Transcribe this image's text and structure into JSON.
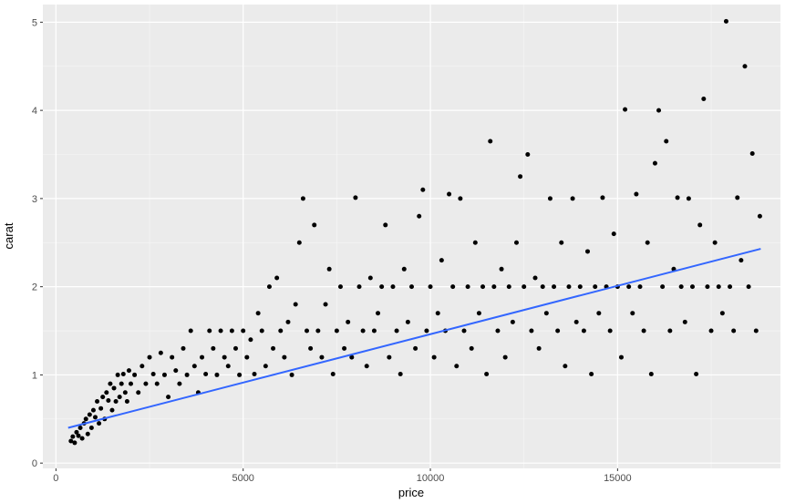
{
  "chart_data": {
    "type": "scatter",
    "xlabel": "price",
    "ylabel": "carat",
    "xlim": [
      -350,
      19350
    ],
    "ylim": [
      -0.06,
      5.2
    ],
    "x_ticks": [
      {
        "value": 0,
        "label": "0"
      },
      {
        "value": 5000,
        "label": "5000"
      },
      {
        "value": 10000,
        "label": "10000"
      },
      {
        "value": 15000,
        "label": "15000"
      }
    ],
    "y_ticks": [
      {
        "value": 0,
        "label": "0"
      },
      {
        "value": 1,
        "label": "1"
      },
      {
        "value": 2,
        "label": "2"
      },
      {
        "value": 3,
        "label": "3"
      },
      {
        "value": 4,
        "label": "4"
      },
      {
        "value": 5,
        "label": "5"
      }
    ],
    "grid": true,
    "background": "#ebebeb",
    "point_color": "#000000",
    "trend_color": "#3366ff",
    "trend_line": {
      "x": [
        326,
        18823
      ],
      "y": [
        0.4,
        2.43
      ]
    },
    "points": [
      [
        400,
        0.25
      ],
      [
        450,
        0.3
      ],
      [
        500,
        0.23
      ],
      [
        550,
        0.35
      ],
      [
        600,
        0.31
      ],
      [
        650,
        0.4
      ],
      [
        700,
        0.28
      ],
      [
        750,
        0.45
      ],
      [
        800,
        0.5
      ],
      [
        850,
        0.33
      ],
      [
        900,
        0.55
      ],
      [
        950,
        0.4
      ],
      [
        1000,
        0.6
      ],
      [
        1050,
        0.52
      ],
      [
        1100,
        0.7
      ],
      [
        1150,
        0.45
      ],
      [
        1200,
        0.62
      ],
      [
        1250,
        0.75
      ],
      [
        1300,
        0.5
      ],
      [
        1350,
        0.8
      ],
      [
        1400,
        0.71
      ],
      [
        1450,
        0.9
      ],
      [
        1500,
        0.6
      ],
      [
        1550,
        0.85
      ],
      [
        1600,
        0.7
      ],
      [
        1650,
        1.0
      ],
      [
        1700,
        0.75
      ],
      [
        1750,
        0.9
      ],
      [
        1800,
        1.01
      ],
      [
        1850,
        0.8
      ],
      [
        1900,
        0.7
      ],
      [
        1950,
        1.05
      ],
      [
        2000,
        0.9
      ],
      [
        2100,
        1.0
      ],
      [
        2200,
        0.8
      ],
      [
        2300,
        1.1
      ],
      [
        2400,
        0.9
      ],
      [
        2500,
        1.2
      ],
      [
        2600,
        1.01
      ],
      [
        2700,
        0.9
      ],
      [
        2800,
        1.25
      ],
      [
        2900,
        1.0
      ],
      [
        3000,
        0.75
      ],
      [
        3100,
        1.2
      ],
      [
        3200,
        1.05
      ],
      [
        3300,
        0.9
      ],
      [
        3400,
        1.3
      ],
      [
        3500,
        1.0
      ],
      [
        3600,
        1.5
      ],
      [
        3700,
        1.1
      ],
      [
        3800,
        0.8
      ],
      [
        3900,
        1.2
      ],
      [
        4000,
        1.01
      ],
      [
        4100,
        1.5
      ],
      [
        4200,
        1.3
      ],
      [
        4300,
        1.0
      ],
      [
        4400,
        1.5
      ],
      [
        4500,
        1.2
      ],
      [
        4600,
        1.1
      ],
      [
        4700,
        1.5
      ],
      [
        4800,
        1.3
      ],
      [
        4900,
        1.0
      ],
      [
        5000,
        1.5
      ],
      [
        5100,
        1.2
      ],
      [
        5200,
        1.4
      ],
      [
        5300,
        1.01
      ],
      [
        5400,
        1.7
      ],
      [
        5500,
        1.5
      ],
      [
        5600,
        1.1
      ],
      [
        5700,
        2.0
      ],
      [
        5800,
        1.3
      ],
      [
        5900,
        2.1
      ],
      [
        6000,
        1.5
      ],
      [
        6100,
        1.2
      ],
      [
        6200,
        1.6
      ],
      [
        6300,
        1.0
      ],
      [
        6400,
        1.8
      ],
      [
        6500,
        2.5
      ],
      [
        6600,
        3.0
      ],
      [
        6700,
        1.5
      ],
      [
        6800,
        1.3
      ],
      [
        6900,
        2.7
      ],
      [
        7000,
        1.5
      ],
      [
        7100,
        1.2
      ],
      [
        7200,
        1.8
      ],
      [
        7300,
        2.2
      ],
      [
        7400,
        1.01
      ],
      [
        7500,
        1.5
      ],
      [
        7600,
        2.0
      ],
      [
        7700,
        1.3
      ],
      [
        7800,
        1.6
      ],
      [
        7900,
        1.2
      ],
      [
        8000,
        3.01
      ],
      [
        8100,
        2.0
      ],
      [
        8200,
        1.5
      ],
      [
        8300,
        1.1
      ],
      [
        8400,
        2.1
      ],
      [
        8500,
        1.5
      ],
      [
        8600,
        1.7
      ],
      [
        8700,
        2.0
      ],
      [
        8800,
        2.7
      ],
      [
        8900,
        1.2
      ],
      [
        9000,
        2.0
      ],
      [
        9100,
        1.5
      ],
      [
        9200,
        1.01
      ],
      [
        9300,
        2.2
      ],
      [
        9400,
        1.6
      ],
      [
        9500,
        2.0
      ],
      [
        9600,
        1.3
      ],
      [
        9700,
        2.8
      ],
      [
        9800,
        3.1
      ],
      [
        9900,
        1.5
      ],
      [
        10000,
        2.0
      ],
      [
        10100,
        1.2
      ],
      [
        10200,
        1.7
      ],
      [
        10300,
        2.3
      ],
      [
        10400,
        1.5
      ],
      [
        10500,
        3.05
      ],
      [
        10600,
        2.0
      ],
      [
        10700,
        1.1
      ],
      [
        10800,
        3.0
      ],
      [
        10900,
        1.5
      ],
      [
        11000,
        2.0
      ],
      [
        11100,
        1.3
      ],
      [
        11200,
        2.5
      ],
      [
        11300,
        1.7
      ],
      [
        11400,
        2.0
      ],
      [
        11500,
        1.01
      ],
      [
        11600,
        3.65
      ],
      [
        11700,
        2.0
      ],
      [
        11800,
        1.5
      ],
      [
        11900,
        2.2
      ],
      [
        12000,
        1.2
      ],
      [
        12100,
        2.0
      ],
      [
        12200,
        1.6
      ],
      [
        12300,
        2.5
      ],
      [
        12400,
        3.25
      ],
      [
        12500,
        2.0
      ],
      [
        12600,
        3.5
      ],
      [
        12700,
        1.5
      ],
      [
        12800,
        2.1
      ],
      [
        12900,
        1.3
      ],
      [
        13000,
        2.0
      ],
      [
        13100,
        1.7
      ],
      [
        13200,
        3.0
      ],
      [
        13300,
        2.0
      ],
      [
        13400,
        1.5
      ],
      [
        13500,
        2.5
      ],
      [
        13600,
        1.1
      ],
      [
        13700,
        2.0
      ],
      [
        13800,
        3.0
      ],
      [
        13900,
        1.6
      ],
      [
        14000,
        2.0
      ],
      [
        14100,
        1.5
      ],
      [
        14200,
        2.4
      ],
      [
        14300,
        1.01
      ],
      [
        14400,
        2.0
      ],
      [
        14500,
        1.7
      ],
      [
        14600,
        3.01
      ],
      [
        14700,
        2.0
      ],
      [
        14800,
        1.5
      ],
      [
        14900,
        2.6
      ],
      [
        15000,
        2.0
      ],
      [
        15100,
        1.2
      ],
      [
        15200,
        4.01
      ],
      [
        15300,
        2.0
      ],
      [
        15400,
        1.7
      ],
      [
        15500,
        3.05
      ],
      [
        15600,
        2.0
      ],
      [
        15700,
        1.5
      ],
      [
        15800,
        2.5
      ],
      [
        15900,
        1.01
      ],
      [
        16000,
        3.4
      ],
      [
        16100,
        4.0
      ],
      [
        16200,
        2.0
      ],
      [
        16300,
        3.65
      ],
      [
        16400,
        1.5
      ],
      [
        16500,
        2.2
      ],
      [
        16600,
        3.01
      ],
      [
        16700,
        2.0
      ],
      [
        16800,
        1.6
      ],
      [
        16900,
        3.0
      ],
      [
        17000,
        2.0
      ],
      [
        17100,
        1.01
      ],
      [
        17200,
        2.7
      ],
      [
        17300,
        4.13
      ],
      [
        17400,
        2.0
      ],
      [
        17500,
        1.5
      ],
      [
        17600,
        2.5
      ],
      [
        17700,
        2.0
      ],
      [
        17800,
        1.7
      ],
      [
        17900,
        5.01
      ],
      [
        18000,
        2.0
      ],
      [
        18100,
        1.5
      ],
      [
        18200,
        3.01
      ],
      [
        18300,
        2.3
      ],
      [
        18400,
        4.5
      ],
      [
        18500,
        2.0
      ],
      [
        18600,
        3.51
      ],
      [
        18700,
        1.5
      ],
      [
        18800,
        2.8
      ]
    ]
  }
}
